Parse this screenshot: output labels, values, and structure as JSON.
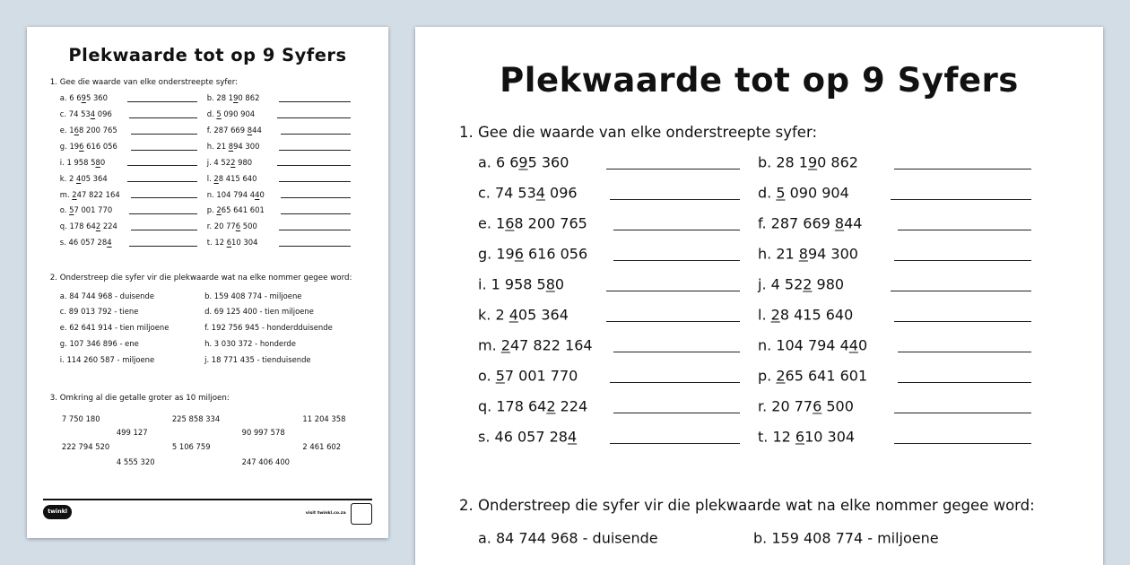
{
  "title": "Plekwaarde tot op 9 Syfers",
  "section1": {
    "heading": "1.  Gee die waarde van elke onderstreepte syfer:",
    "items": [
      {
        "pre": "a. 6 6",
        "u": "9",
        "post": "5 360"
      },
      {
        "pre": "b. 28 1",
        "u": "9",
        "post": "0 862"
      },
      {
        "pre": "c. 74 53",
        "u": "4",
        "post": " 096"
      },
      {
        "pre": "d. ",
        "u": "5",
        "post": " 090 904"
      },
      {
        "pre": "e. 1",
        "u": "6",
        "post": "8 200 765"
      },
      {
        "pre": "f. 287 669 ",
        "u": "8",
        "post": "44"
      },
      {
        "pre": "g. 19",
        "u": "6",
        "post": " 616 056"
      },
      {
        "pre": "h. 21 ",
        "u": "8",
        "post": "94 300"
      },
      {
        "pre": "i. 1 958 5",
        "u": "8",
        "post": "0"
      },
      {
        "pre": "j. 4 52",
        "u": "2",
        "post": " 980"
      },
      {
        "pre": "k. 2 ",
        "u": "4",
        "post": "05 364"
      },
      {
        "pre": "l. ",
        "u": "2",
        "post": "8 415 640"
      },
      {
        "pre": "m. ",
        "u": "2",
        "post": "47 822 164"
      },
      {
        "pre": "n. 104 794 4",
        "u": "4",
        "post": "0"
      },
      {
        "pre": "o. ",
        "u": "5",
        "post": "7 001 770"
      },
      {
        "pre": "p. ",
        "u": "2",
        "post": "65 641 601"
      },
      {
        "pre": "q. 178 64",
        "u": "2",
        "post": " 224"
      },
      {
        "pre": "r. 20 77",
        "u": "6",
        "post": " 500"
      },
      {
        "pre": "s. 46 057 28",
        "u": "4",
        "post": ""
      },
      {
        "pre": "t. 12 ",
        "u": "6",
        "post": "10 304"
      }
    ]
  },
  "section2": {
    "heading": "2.  Onderstreep die syfer vir die plekwaarde wat na elke nommer gegee word:",
    "items": [
      "a. 84 744 968 - duisende",
      "b. 159 408 774 - miljoene",
      "c. 89 013 792 - tiene",
      "d. 69 125 400 - tien miljoene",
      "e. 62 641 914 - tien miljoene",
      "f. 192 756 945 - honderdduisende",
      "g. 107 346 896 - ene",
      "h. 3 030 372 - honderde",
      "i. 114 260 587 - miljoene",
      "j. 18 771 435 - tienduisende"
    ]
  },
  "section3": {
    "heading": "3.  Omkring al die getalle groter as 10 miljoen:",
    "numbers": [
      "7 750 180",
      "225 858 334",
      "11 204 358",
      "499 127",
      "90 997 578",
      "222 794 520",
      "5 106 759",
      "2 461 602",
      "4 555 320",
      "247 406 400"
    ]
  },
  "footer": {
    "logo": "twinkl",
    "site": "visit twinkl.co.za"
  }
}
